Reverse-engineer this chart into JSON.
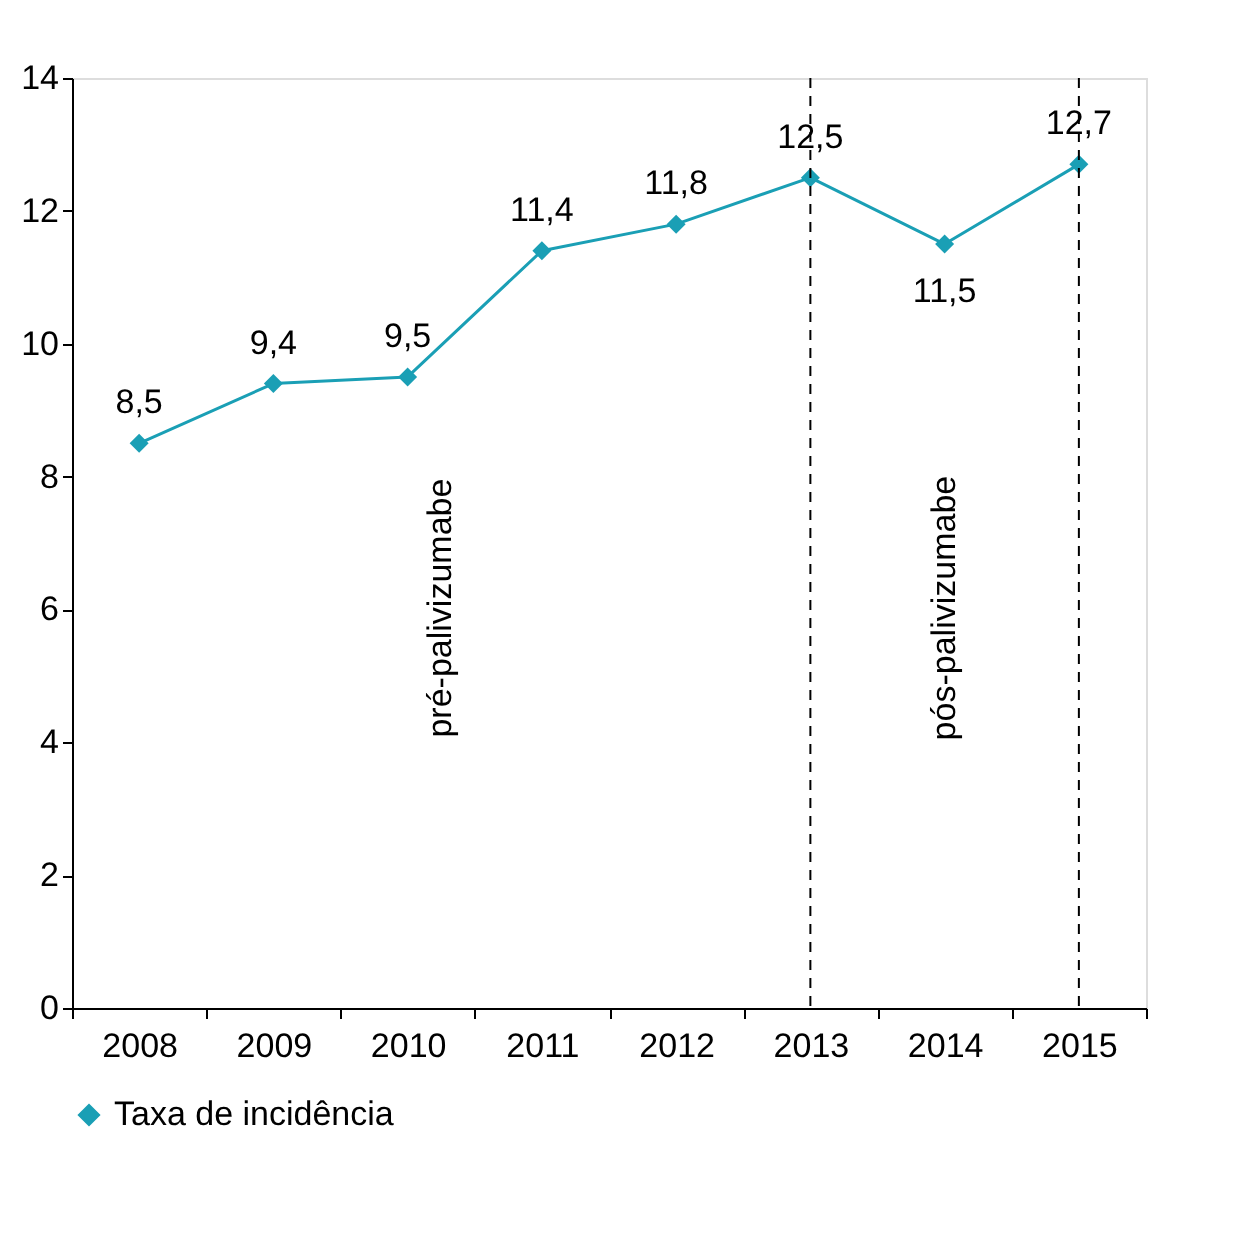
{
  "chart_data": {
    "type": "line",
    "categories": [
      "2008",
      "2009",
      "2010",
      "2011",
      "2012",
      "2013",
      "2014",
      "2015"
    ],
    "series": [
      {
        "name": "Taxa de incidência",
        "color": "#1a9fb5",
        "values": [
          8.5,
          9.4,
          9.5,
          11.4,
          11.8,
          12.5,
          11.5,
          12.7
        ],
        "value_labels": [
          "8,5",
          "9,4",
          "9,5",
          "11,4",
          "11,8",
          "12,5",
          "11,5",
          "12,7"
        ]
      }
    ],
    "ylim": [
      0,
      14
    ],
    "yticks": [
      0,
      2,
      4,
      6,
      8,
      10,
      12,
      14
    ],
    "marker": "diamond",
    "grid": false,
    "legend": "bottom",
    "ref_lines": [
      {
        "axis": "x",
        "value": "2013",
        "line_style": "dashed",
        "color": "#000000"
      },
      {
        "axis": "x",
        "value": "2015",
        "line_style": "dashed",
        "color": "#000000"
      }
    ],
    "annotations": [
      "pré-palivizumabe",
      "pós-palivizumabe"
    ]
  }
}
